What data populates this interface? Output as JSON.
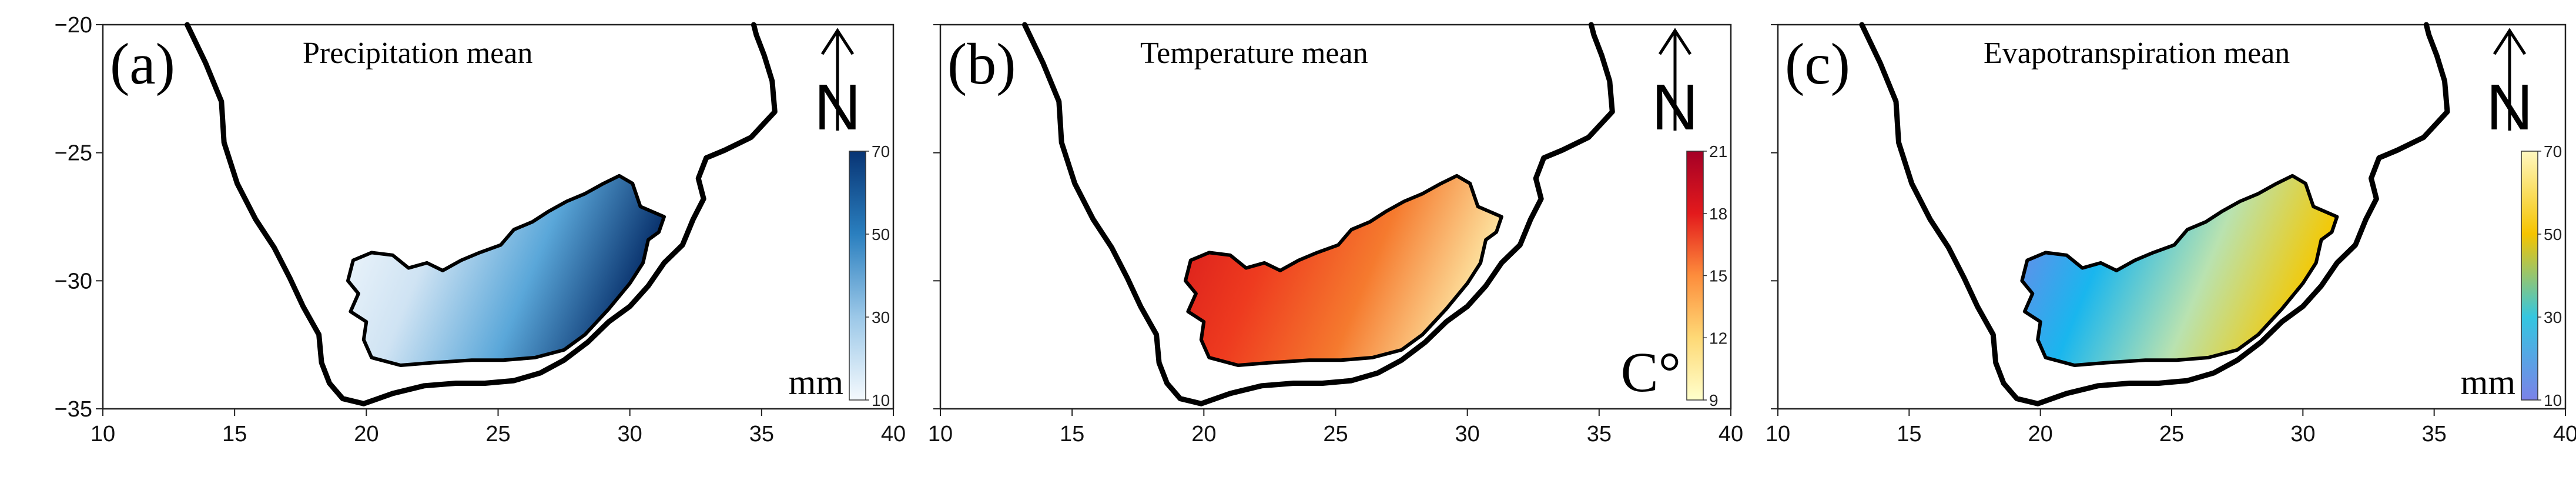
{
  "panels": [
    {
      "label": "(a)",
      "title": "Precipitation mean",
      "unit": "mm",
      "north_glyph": "N",
      "show_y_ticks": true,
      "x_ticks": [
        "10",
        "15",
        "20",
        "25",
        "30",
        "35",
        "40"
      ],
      "y_ticks": [
        "−20",
        "−25",
        "−30",
        "−35"
      ],
      "colorbar": {
        "ticks": [
          "70",
          "50",
          "30",
          "10"
        ],
        "colors": [
          "#083474",
          "#2a7fbf",
          "#9cc8e8",
          "#f4f9fd"
        ]
      },
      "field_colors": [
        "#f4f9fd",
        "#cfe3f3",
        "#5aa7d9",
        "#08306b"
      ]
    },
    {
      "label": "(b)",
      "title": "Temperature mean",
      "unit": "C°",
      "north_glyph": "N",
      "show_y_ticks": false,
      "x_ticks": [
        "10",
        "15",
        "20",
        "25",
        "30",
        "35",
        "40"
      ],
      "y_ticks": [],
      "colorbar": {
        "ticks": [
          "21",
          "18",
          "15",
          "12",
          "9"
        ],
        "colors": [
          "#a50026",
          "#e31a1c",
          "#fd8d3c",
          "#fed976",
          "#ffffcc"
        ]
      },
      "field_colors": [
        "#d7191c",
        "#ee3b1f",
        "#f57a2e",
        "#fde3a0"
      ]
    },
    {
      "label": "(c)",
      "title": "Evapotranspiration mean",
      "unit": "mm",
      "north_glyph": "N",
      "show_y_ticks": false,
      "x_ticks": [
        "10",
        "15",
        "20",
        "25",
        "30",
        "35",
        "40"
      ],
      "y_ticks": [],
      "colorbar": {
        "ticks": [
          "70",
          "50",
          "30",
          "10"
        ],
        "colors": [
          "#fff7c0",
          "#f5c400",
          "#34c6e0",
          "#7b82e8"
        ]
      },
      "field_colors": [
        "#7b82e8",
        "#19b6ee",
        "#b9e2b0",
        "#f5c800"
      ]
    }
  ]
}
